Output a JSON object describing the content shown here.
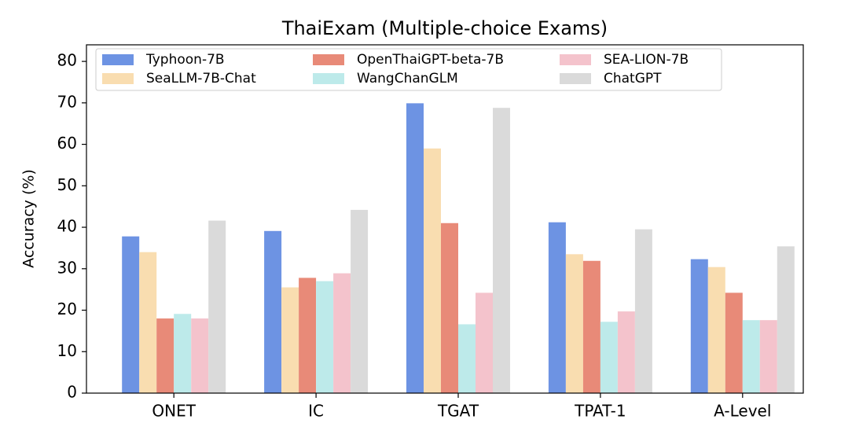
{
  "chart_data": {
    "type": "bar",
    "title": "ThaiExam (Multiple-choice Exams)",
    "y_label": "Accuracy (%)",
    "categories": [
      "ONET",
      "IC",
      "TGAT",
      "TPAT-1",
      "A-Level"
    ],
    "series": [
      {
        "name": "Typhoon-7B",
        "color": "#6d93e3",
        "values": [
          37.8,
          39.1,
          69.9,
          41.2,
          32.3
        ]
      },
      {
        "name": "SeaLLM-7B-Chat",
        "color": "#f9ddb0",
        "values": [
          34.0,
          25.5,
          59.0,
          33.5,
          30.4
        ]
      },
      {
        "name": "OpenThaiGPT-beta-7B",
        "color": "#e88a78",
        "values": [
          18.0,
          27.8,
          41.0,
          31.9,
          24.2
        ]
      },
      {
        "name": "WangChanGLM",
        "color": "#bdeaea",
        "values": [
          19.1,
          27.0,
          16.6,
          17.2,
          17.6
        ]
      },
      {
        "name": "SEA-LION-7B",
        "color": "#f4c3cc",
        "values": [
          18.0,
          28.9,
          24.2,
          19.7,
          17.6
        ]
      },
      {
        "name": "ChatGPT",
        "color": "#dadada",
        "values": [
          41.6,
          44.2,
          68.8,
          39.5,
          35.4
        ]
      }
    ],
    "ylim": [
      0,
      84
    ],
    "yticks": [
      0,
      10,
      20,
      30,
      40,
      50,
      60,
      70,
      80
    ],
    "legend": "upper left"
  }
}
